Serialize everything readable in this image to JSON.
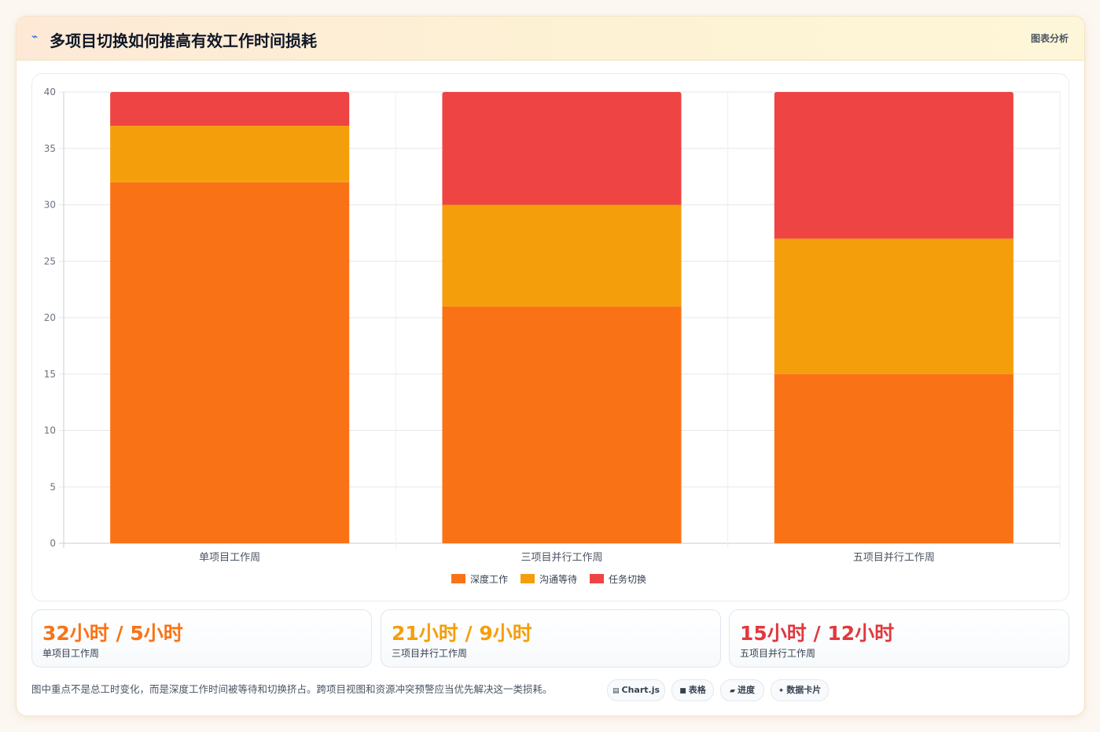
{
  "header": {
    "icon": "bolt-icon",
    "title": "多项目切换如何推高有效工作时间损耗",
    "right_label": "图表分析"
  },
  "chart_data": {
    "type": "bar",
    "stacked": true,
    "categories": [
      "单项目工作周",
      "三项目并行工作周",
      "五项目并行工作周"
    ],
    "series": [
      {
        "name": "深度工作",
        "color": "#f97316",
        "values": [
          32,
          21,
          15
        ]
      },
      {
        "name": "沟通等待",
        "color": "#f59e0b",
        "values": [
          5,
          9,
          12
        ]
      },
      {
        "name": "任务切换",
        "color": "#ef4444",
        "values": [
          3,
          10,
          13
        ]
      }
    ],
    "ylim": [
      0,
      40
    ],
    "yticks": [
      0,
      5,
      10,
      15,
      20,
      25,
      30,
      35,
      40
    ],
    "grid": true,
    "legend": "bottom"
  },
  "stats": [
    {
      "value": "32小时 / 5小时",
      "label": "单项目工作周",
      "color": "#f97316"
    },
    {
      "value": "21小时 / 9小时",
      "label": "三项目并行工作周",
      "color": "#f59e0b"
    },
    {
      "value": "15小时 / 12小时",
      "label": "五项目并行工作周",
      "color": "#e0393e"
    }
  ],
  "note": "图中重点不是总工时变化，而是深度工作时间被等待和切换挤占。跨项目视图和资源冲突预警应当优先解决这一类损耗。",
  "tags": [
    {
      "icon": "chart-icon",
      "label": "Chart.js"
    },
    {
      "icon": "table-icon",
      "label": "表格"
    },
    {
      "icon": "progress-icon",
      "label": "进度"
    },
    {
      "icon": "sparkle-icon",
      "label": "数据卡片"
    }
  ]
}
